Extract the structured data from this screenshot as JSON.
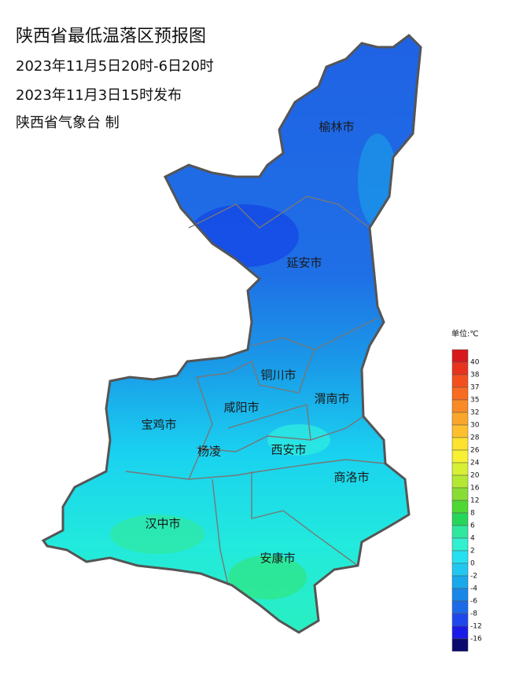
{
  "title": "陕西省最低温落区预报图",
  "valid_period": "2023年11月5日20时-6日20时",
  "issued": "2023年11月3日15时发布",
  "issuer": "陕西省气象台 制",
  "cities": [
    "榆林市",
    "延安市",
    "铜川市",
    "渭南市",
    "咸阳市",
    "宝鸡市",
    "杨凌",
    "西安市",
    "商洛市",
    "汉中市",
    "安康市"
  ],
  "legend": {
    "unit": "单位:℃",
    "levels": [
      40,
      38,
      37,
      35,
      32,
      30,
      28,
      26,
      24,
      20,
      16,
      12,
      8,
      6,
      4,
      2,
      0,
      -2,
      -4,
      -6,
      -8,
      -12,
      -16
    ],
    "colors": [
      "#d7191c",
      "#e8331f",
      "#f4501f",
      "#f86b20",
      "#f98a26",
      "#fba62a",
      "#fdc02c",
      "#fde22f",
      "#f6f233",
      "#d8f034",
      "#b4e833",
      "#88dd34",
      "#4fd733",
      "#26d65a",
      "#2fe8a0",
      "#30f0d0",
      "#25e0f0",
      "#20c8f0",
      "#1aa8ec",
      "#1887e8",
      "#1c6ae8",
      "#1e48ee",
      "#1a1ae8",
      "#0a0a6e"
    ]
  }
}
